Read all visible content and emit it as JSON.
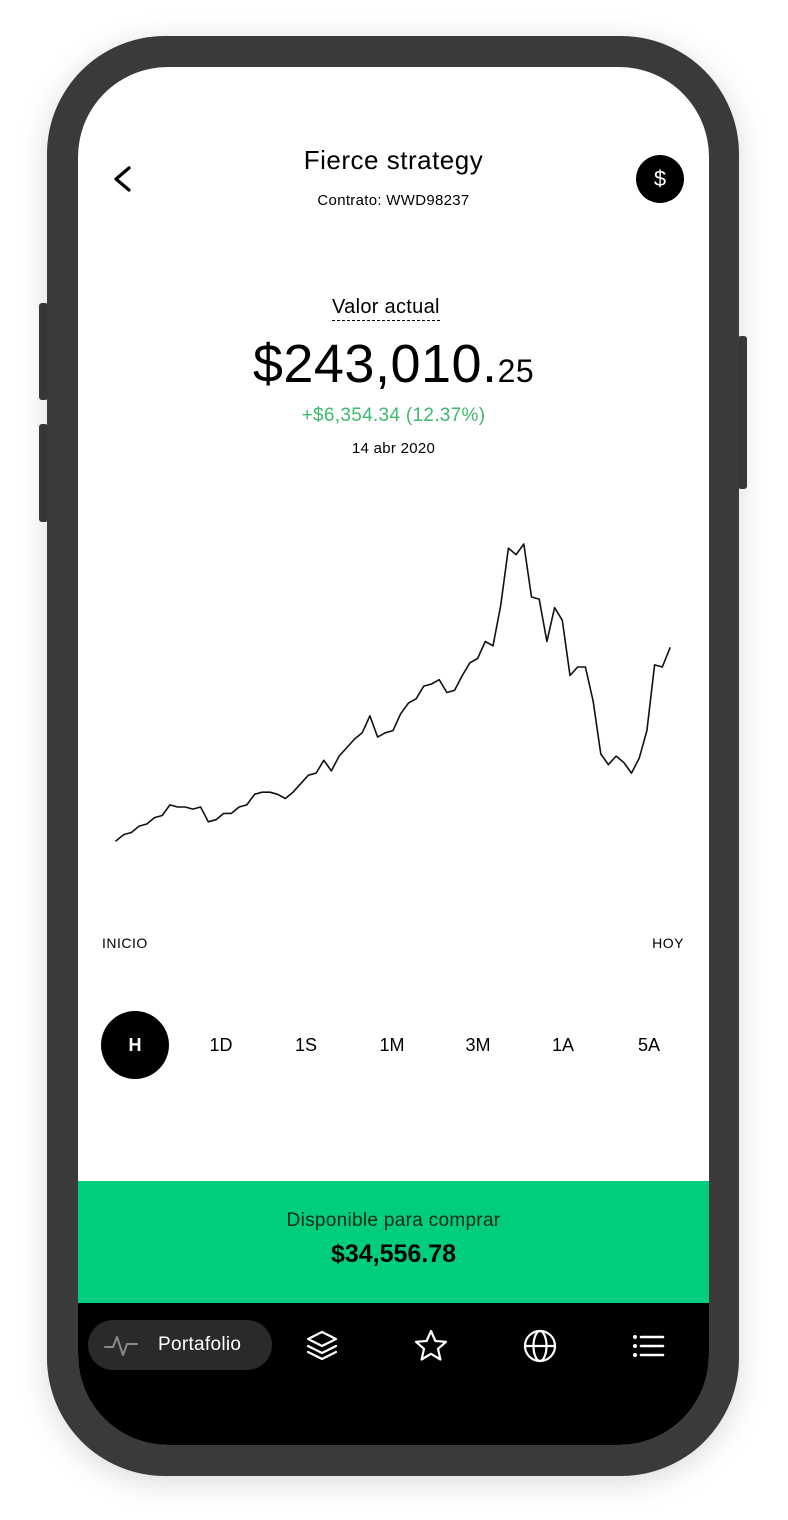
{
  "header": {
    "title": "Fierce strategy",
    "contract": "Contrato: WWD98237"
  },
  "value": {
    "label": "Valor actual",
    "main": "$243,010.",
    "cents": "25",
    "change": "+$6,354.34 (12.37%)",
    "date": "14 abr 2020",
    "change_color": "#3cba6e"
  },
  "chart_data": {
    "type": "line",
    "x_start_label": "INICIO",
    "x_end_label": "HOY",
    "values": [
      17,
      20,
      21,
      24,
      25,
      28,
      29,
      34,
      33,
      33,
      32,
      33,
      26,
      27,
      30,
      30,
      33,
      34,
      39,
      40,
      40,
      39,
      37,
      40,
      44,
      48,
      49,
      55,
      50,
      57,
      61,
      65,
      68,
      76,
      66,
      68,
      69,
      77,
      82,
      84,
      90,
      91,
      93,
      87,
      88,
      95,
      101,
      103,
      111,
      109,
      128,
      155,
      152,
      157,
      132,
      131,
      111,
      127,
      121,
      95,
      99,
      99,
      83,
      58,
      53,
      57,
      54,
      49,
      56,
      69,
      100,
      99,
      108
    ],
    "ylim": [
      0,
      165
    ],
    "line_color": "#111111",
    "grid": false
  },
  "periods": {
    "items": [
      "H",
      "1D",
      "1S",
      "1M",
      "3M",
      "1A",
      "5A"
    ],
    "active": "H"
  },
  "buy": {
    "label": "Disponible para comprar",
    "value": "$34,556.78"
  },
  "nav": {
    "active_label": "Portafolio",
    "icons": [
      "pulse-icon",
      "layers-icon",
      "star-icon",
      "globe-icon",
      "list-icon"
    ]
  }
}
